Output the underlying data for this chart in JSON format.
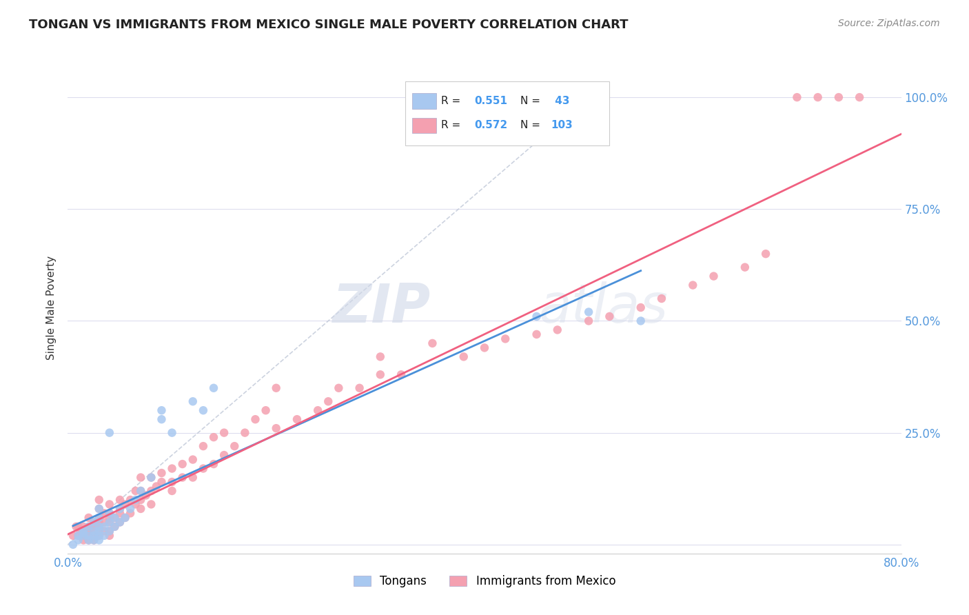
{
  "title": "TONGAN VS IMMIGRANTS FROM MEXICO SINGLE MALE POVERTY CORRELATION CHART",
  "source": "Source: ZipAtlas.com",
  "ylabel": "Single Male Poverty",
  "xlim": [
    0.0,
    0.8
  ],
  "ylim": [
    -0.02,
    1.08
  ],
  "legend_R_tongans": "0.551",
  "legend_N_tongans": " 43",
  "legend_R_mexico": "0.572",
  "legend_N_mexico": "103",
  "color_tongans": "#a8c8f0",
  "color_mexico": "#f4a0b0",
  "color_tongans_line": "#4a90d9",
  "color_mexico_line": "#f06080",
  "color_diagonal": "#c0c8d8",
  "background_color": "#ffffff",
  "watermark_ZIP": "ZIP",
  "watermark_atlas": "atlas",
  "tongans_x": [
    0.005,
    0.01,
    0.01,
    0.015,
    0.015,
    0.015,
    0.02,
    0.02,
    0.02,
    0.025,
    0.025,
    0.025,
    0.025,
    0.03,
    0.03,
    0.03,
    0.03,
    0.03,
    0.03,
    0.035,
    0.035,
    0.04,
    0.04,
    0.04,
    0.04,
    0.045,
    0.045,
    0.05,
    0.05,
    0.055,
    0.06,
    0.065,
    0.07,
    0.08,
    0.09,
    0.09,
    0.1,
    0.12,
    0.13,
    0.14,
    0.45,
    0.5,
    0.55
  ],
  "tongans_y": [
    0.0,
    0.01,
    0.02,
    0.02,
    0.025,
    0.03,
    0.01,
    0.02,
    0.04,
    0.01,
    0.02,
    0.03,
    0.05,
    0.01,
    0.02,
    0.03,
    0.04,
    0.06,
    0.08,
    0.02,
    0.04,
    0.03,
    0.05,
    0.07,
    0.25,
    0.04,
    0.06,
    0.05,
    0.08,
    0.06,
    0.08,
    0.1,
    0.12,
    0.15,
    0.28,
    0.3,
    0.25,
    0.32,
    0.3,
    0.35,
    0.51,
    0.52,
    0.5
  ],
  "mexico_x": [
    0.005,
    0.008,
    0.01,
    0.01,
    0.012,
    0.015,
    0.015,
    0.015,
    0.015,
    0.02,
    0.02,
    0.02,
    0.02,
    0.02,
    0.025,
    0.025,
    0.025,
    0.025,
    0.025,
    0.03,
    0.03,
    0.03,
    0.03,
    0.03,
    0.03,
    0.03,
    0.035,
    0.035,
    0.035,
    0.04,
    0.04,
    0.04,
    0.04,
    0.04,
    0.04,
    0.045,
    0.045,
    0.05,
    0.05,
    0.05,
    0.05,
    0.055,
    0.055,
    0.06,
    0.06,
    0.065,
    0.065,
    0.07,
    0.07,
    0.07,
    0.07,
    0.075,
    0.08,
    0.08,
    0.08,
    0.085,
    0.09,
    0.09,
    0.1,
    0.1,
    0.1,
    0.11,
    0.11,
    0.12,
    0.12,
    0.13,
    0.13,
    0.14,
    0.14,
    0.15,
    0.15,
    0.16,
    0.17,
    0.18,
    0.19,
    0.2,
    0.2,
    0.22,
    0.24,
    0.25,
    0.26,
    0.28,
    0.3,
    0.3,
    0.32,
    0.35,
    0.38,
    0.4,
    0.42,
    0.45,
    0.47,
    0.5,
    0.52,
    0.55,
    0.57,
    0.6,
    0.62,
    0.65,
    0.67,
    0.7,
    0.72,
    0.74,
    0.76
  ],
  "mexico_y": [
    0.02,
    0.04,
    0.02,
    0.04,
    0.03,
    0.01,
    0.02,
    0.03,
    0.04,
    0.01,
    0.02,
    0.03,
    0.04,
    0.06,
    0.01,
    0.02,
    0.03,
    0.04,
    0.05,
    0.02,
    0.03,
    0.04,
    0.05,
    0.06,
    0.08,
    0.1,
    0.03,
    0.05,
    0.07,
    0.02,
    0.03,
    0.05,
    0.06,
    0.07,
    0.09,
    0.04,
    0.06,
    0.05,
    0.07,
    0.08,
    0.1,
    0.06,
    0.09,
    0.07,
    0.1,
    0.09,
    0.12,
    0.08,
    0.1,
    0.12,
    0.15,
    0.11,
    0.09,
    0.12,
    0.15,
    0.13,
    0.14,
    0.16,
    0.12,
    0.14,
    0.17,
    0.15,
    0.18,
    0.15,
    0.19,
    0.17,
    0.22,
    0.18,
    0.24,
    0.2,
    0.25,
    0.22,
    0.25,
    0.28,
    0.3,
    0.26,
    0.35,
    0.28,
    0.3,
    0.32,
    0.35,
    0.35,
    0.38,
    0.42,
    0.38,
    0.45,
    0.42,
    0.44,
    0.46,
    0.47,
    0.48,
    0.5,
    0.51,
    0.53,
    0.55,
    0.58,
    0.6,
    0.62,
    0.65,
    1.0,
    1.0,
    1.0,
    1.0
  ]
}
